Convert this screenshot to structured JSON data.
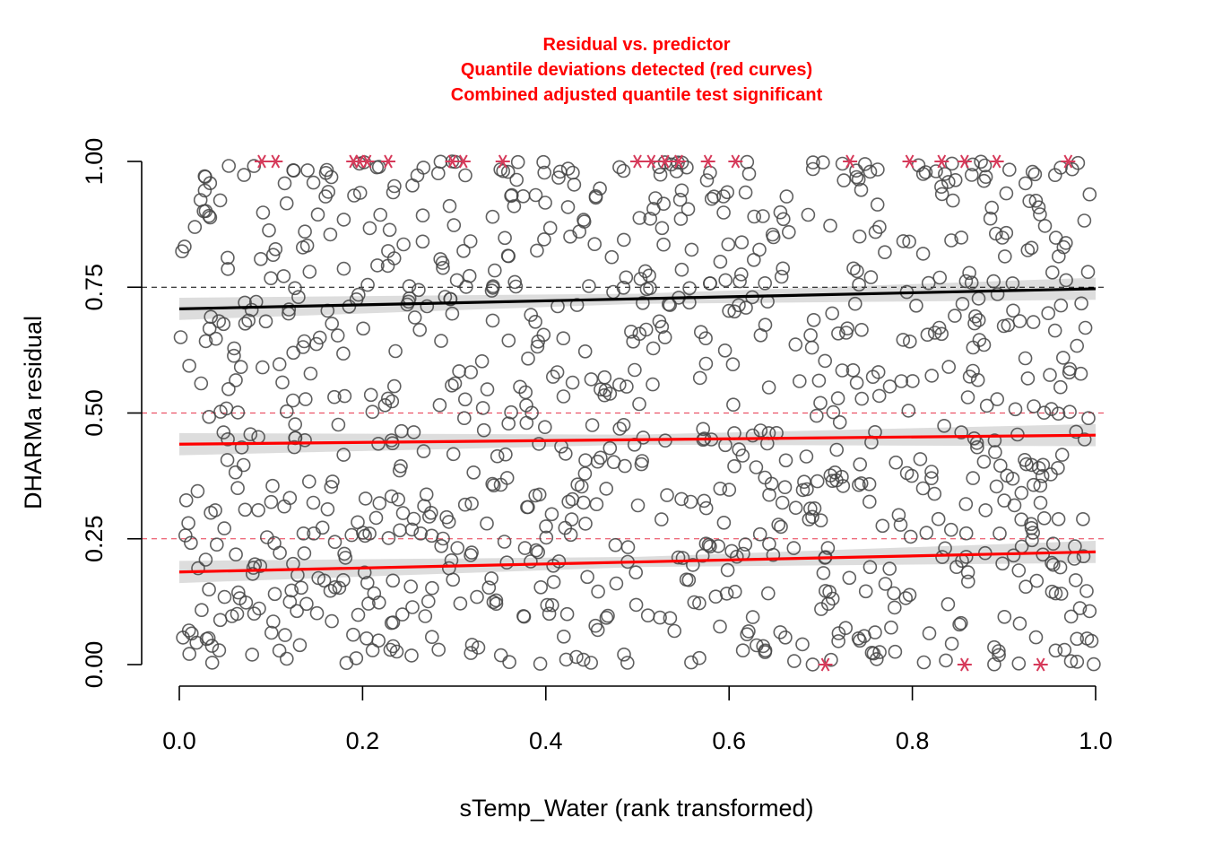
{
  "chart_data": {
    "type": "scatter",
    "title_lines": [
      "Residual vs. predictor",
      "Quantile deviations detected (red curves)",
      "Combined adjusted quantile test significant"
    ],
    "xlabel": "sTemp_Water (rank transformed)",
    "ylabel": "DHARMa residual",
    "xlim": [
      0,
      1
    ],
    "ylim": [
      0,
      1
    ],
    "x_ticks": [
      "0.0",
      "0.2",
      "0.4",
      "0.6",
      "0.8",
      "1.0"
    ],
    "y_ticks": [
      "0.00",
      "0.25",
      "0.50",
      "0.75",
      "1.00"
    ],
    "reference_lines": [
      {
        "y": 0.25,
        "color": "#e8384f",
        "style": "dashed"
      },
      {
        "y": 0.5,
        "color": "#e8384f",
        "style": "dashed"
      },
      {
        "y": 0.75,
        "color": "#000000",
        "style": "dashed"
      }
    ],
    "quantile_fits": [
      {
        "quantile": 0.25,
        "x": [
          0,
          1
        ],
        "y": [
          0.184,
          0.224
        ],
        "color": "#ff0000"
      },
      {
        "quantile": 0.5,
        "x": [
          0,
          1
        ],
        "y": [
          0.438,
          0.456
        ],
        "color": "#ff0000"
      },
      {
        "quantile": 0.75,
        "x": [
          0,
          1
        ],
        "y": [
          0.707,
          0.747
        ],
        "color": "#000000"
      }
    ],
    "outliers": [
      [
        0.09,
        1.0
      ],
      [
        0.105,
        1.0
      ],
      [
        0.19,
        1.0
      ],
      [
        0.197,
        1.0
      ],
      [
        0.205,
        1.0
      ],
      [
        0.228,
        1.0
      ],
      [
        0.298,
        1.0
      ],
      [
        0.31,
        1.0
      ],
      [
        0.353,
        1.0
      ],
      [
        0.5,
        1.0
      ],
      [
        0.515,
        1.0
      ],
      [
        0.53,
        1.0
      ],
      [
        0.545,
        1.0
      ],
      [
        0.577,
        1.0
      ],
      [
        0.607,
        1.0
      ],
      [
        0.732,
        1.0
      ],
      [
        0.797,
        1.0
      ],
      [
        0.832,
        1.0
      ],
      [
        0.857,
        1.0
      ],
      [
        0.892,
        1.0
      ],
      [
        0.97,
        1.0
      ],
      [
        0.705,
        0.0
      ],
      [
        0.857,
        0.0
      ],
      [
        0.94,
        0.0
      ]
    ],
    "points_note_count": 1000,
    "colors": {
      "points": "#444444",
      "outliers": "#d63a5a",
      "band": "#d9d9d9",
      "red_fit": "#ff0000",
      "black_fit": "#000000"
    }
  }
}
